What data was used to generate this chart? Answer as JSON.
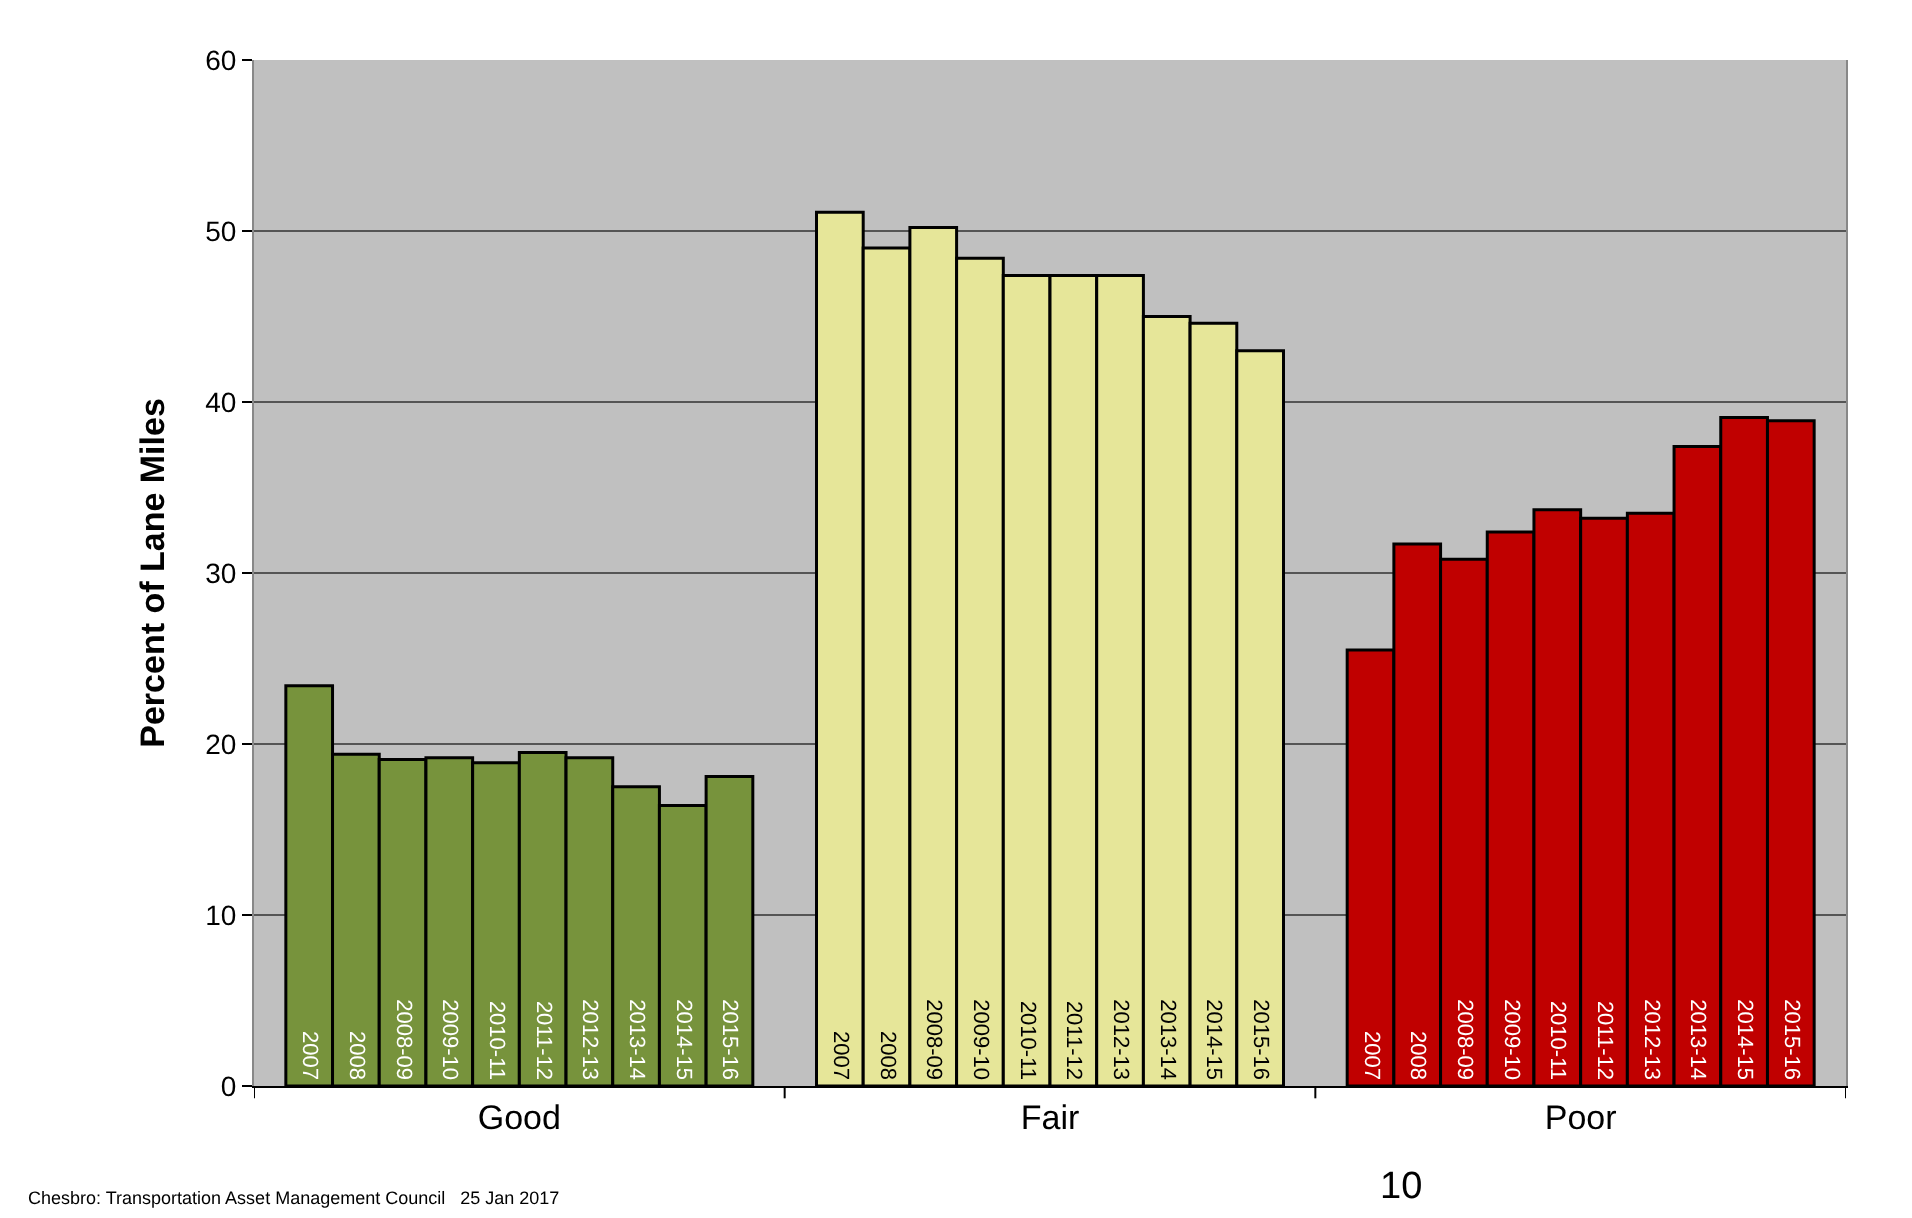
{
  "chart_data": {
    "type": "bar",
    "ylabel": "Percent of Lane Miles",
    "categories": [
      "Good",
      "Fair",
      "Poor"
    ],
    "series": [
      {
        "name": "2007",
        "colors": [
          "#77933c",
          "#e6e699",
          "#c00000"
        ],
        "values": [
          23.4,
          51.1,
          25.5
        ]
      },
      {
        "name": "2008",
        "colors": [
          "#77933c",
          "#e6e699",
          "#c00000"
        ],
        "values": [
          19.4,
          49.0,
          31.7
        ]
      },
      {
        "name": "2008-09",
        "colors": [
          "#77933c",
          "#e6e699",
          "#c00000"
        ],
        "values": [
          19.1,
          50.2,
          30.8
        ]
      },
      {
        "name": "2009-10",
        "colors": [
          "#77933c",
          "#e6e699",
          "#c00000"
        ],
        "values": [
          19.2,
          48.4,
          32.4
        ]
      },
      {
        "name": "2010-11",
        "colors": [
          "#77933c",
          "#e6e699",
          "#c00000"
        ],
        "values": [
          18.9,
          47.4,
          33.7
        ]
      },
      {
        "name": "2011-12",
        "colors": [
          "#77933c",
          "#e6e699",
          "#c00000"
        ],
        "values": [
          19.5,
          47.4,
          33.2
        ]
      },
      {
        "name": "2012-13",
        "colors": [
          "#77933c",
          "#e6e699",
          "#c00000"
        ],
        "values": [
          19.2,
          47.4,
          33.5
        ]
      },
      {
        "name": "2013-14",
        "colors": [
          "#77933c",
          "#e6e699",
          "#c00000"
        ],
        "values": [
          17.5,
          45.0,
          37.4
        ]
      },
      {
        "name": "2014-15",
        "colors": [
          "#77933c",
          "#e6e699",
          "#c00000"
        ],
        "values": [
          16.4,
          44.6,
          39.1
        ]
      },
      {
        "name": "2015-16",
        "colors": [
          "#77933c",
          "#e6e699",
          "#c00000"
        ],
        "values": [
          18.1,
          43.0,
          38.9
        ]
      }
    ],
    "ylim": [
      0,
      60
    ],
    "yticks": [
      0,
      10,
      20,
      30,
      40,
      50,
      60
    ],
    "grid": "y",
    "legend": false,
    "annotations": [
      "10",
      "Chesbro: Transportation Asset Management Council   25 Jan 2017"
    ]
  }
}
